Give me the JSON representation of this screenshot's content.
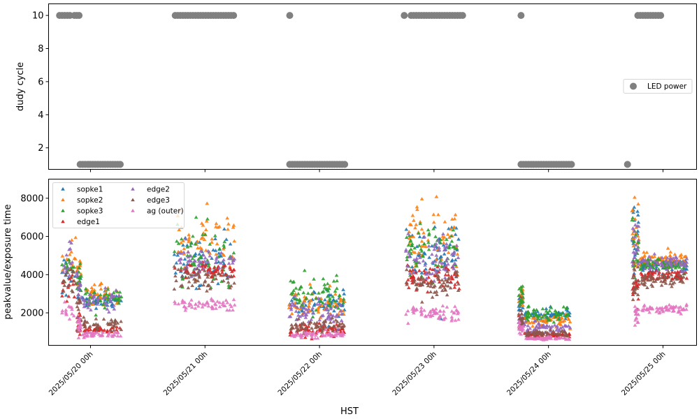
{
  "chart_data": [
    {
      "id": "led-power",
      "type": "scatter",
      "title": "",
      "xlabel": "",
      "ylabel": "dudy cycle",
      "ylim": [
        0.7,
        10.7
      ],
      "yticks": [
        2,
        4,
        6,
        8,
        10
      ],
      "ytick_labels": [
        "2",
        "4",
        "6",
        "8",
        "10"
      ],
      "x_unit": "days since 2025/05/20 00h (HST)",
      "xlim": [
        -0.366,
        5.293
      ],
      "xticks": [
        0,
        1,
        2,
        3,
        4,
        5
      ],
      "xtick_labels_hidden": true,
      "legend": {
        "entries": [
          {
            "label": "LED power",
            "color": "#808080",
            "marker": "circle"
          }
        ],
        "placement": "center-right"
      },
      "series": [
        {
          "name": "LED power",
          "color": "#808080",
          "segments": [
            {
              "value": 10,
              "x_start": -0.27,
              "x_end": -0.18
            },
            {
              "value": 10,
              "x_start": -0.14,
              "x_end": -0.1
            },
            {
              "value": 1,
              "x_start": -0.09,
              "x_end": 0.26
            },
            {
              "value": 10,
              "x_start": 0.74,
              "x_end": 1.25
            },
            {
              "value": 1,
              "x_start": 1.74,
              "x_end": 2.22
            },
            {
              "value": 10,
              "x_start": 1.74,
              "x_end": 1.74
            },
            {
              "value": 10,
              "x_start": 2.74,
              "x_end": 2.74
            },
            {
              "value": 10,
              "x_start": 2.8,
              "x_end": 3.25
            },
            {
              "value": 10,
              "x_start": 3.76,
              "x_end": 3.76
            },
            {
              "value": 1,
              "x_start": 3.76,
              "x_end": 4.2
            },
            {
              "value": 1,
              "x_start": 4.69,
              "x_end": 4.69
            },
            {
              "value": 10,
              "x_start": 4.78,
              "x_end": 4.98
            }
          ]
        }
      ]
    },
    {
      "id": "peak-exposure",
      "type": "scatter",
      "title": "",
      "xlabel": "HST",
      "ylabel": "peakvalue/exposure time",
      "ylim": [
        300,
        9000
      ],
      "yticks": [
        2000,
        4000,
        6000,
        8000
      ],
      "ytick_labels": [
        "2000",
        "4000",
        "6000",
        "8000"
      ],
      "xlim": [
        -0.366,
        5.293
      ],
      "xticks": [
        0,
        1,
        2,
        3,
        4,
        5
      ],
      "xtick_labels": [
        "2025/05/20 00h",
        "2025/05/21 00h",
        "2025/05/22 00h",
        "2025/05/23 00h",
        "2025/05/24 00h",
        "2025/05/25 00h"
      ],
      "legend": {
        "placement": "upper-left",
        "ncol": 2,
        "entries": [
          {
            "label": "sopke1",
            "color": "#1f77b4"
          },
          {
            "label": "sopke2",
            "color": "#ff7f0e"
          },
          {
            "label": "sopke3",
            "color": "#2ca02c"
          },
          {
            "label": "edge1",
            "color": "#d62728"
          },
          {
            "label": "edge2",
            "color": "#9467bd"
          },
          {
            "label": "edge3",
            "color": "#8c564b"
          },
          {
            "label": "ag (outer)",
            "color": "#e377c2"
          }
        ]
      },
      "series_colors": {
        "sopke1": "#1f77b4",
        "sopke2": "#ff7f0e",
        "sopke3": "#2ca02c",
        "edge1": "#d62728",
        "edge2": "#9467bd",
        "edge3": "#8c564b",
        "ag (outer)": "#e377c2"
      },
      "clusters": [
        {
          "x_start": -0.25,
          "x_end": -0.13,
          "n": 14,
          "levels": {
            "sopke1": [
              4200,
              700
            ],
            "sopke2": [
              4800,
              900
            ],
            "sopke3": [
              4300,
              700
            ],
            "edge1": [
              3300,
              700
            ],
            "edge2": [
              4500,
              900
            ],
            "edge3": [
              3800,
              800
            ],
            "ag (outer)": [
              2100,
              400
            ]
          }
        },
        {
          "x_start": -0.12,
          "x_end": -0.08,
          "n": 14,
          "levels": {
            "sopke1": [
              3500,
              700
            ],
            "sopke2": [
              4200,
              900
            ],
            "sopke3": [
              3700,
              700
            ],
            "edge1": [
              1500,
              700
            ],
            "edge2": [
              3200,
              1200
            ],
            "edge3": [
              2200,
              1000
            ],
            "ag (outer)": [
              1300,
              500
            ]
          }
        },
        {
          "x_start": -0.07,
          "x_end": 0.27,
          "n": 40,
          "levels": {
            "sopke1": [
              2600,
              300
            ],
            "sopke2": [
              3000,
              500
            ],
            "sopke3": [
              2800,
              400
            ],
            "edge1": [
              1100,
              150
            ],
            "edge2": [
              2700,
              400
            ],
            "edge3": [
              1400,
              250
            ],
            "ag (outer)": [
              850,
              120
            ]
          }
        },
        {
          "x_start": 0.73,
          "x_end": 1.26,
          "n": 55,
          "levels": {
            "sopke1": [
              4800,
              1100
            ],
            "sopke2": [
              5600,
              1500
            ],
            "sopke3": [
              5000,
              1100
            ],
            "edge1": [
              4200,
              350
            ],
            "edge2": [
              4700,
              600
            ],
            "edge3": [
              3800,
              600
            ],
            "ag (outer)": [
              2400,
              250
            ]
          }
        },
        {
          "x_start": 1.73,
          "x_end": 2.22,
          "n": 60,
          "levels": {
            "sopke1": [
              2500,
              500
            ],
            "sopke2": [
              2500,
              600
            ],
            "sopke3": [
              2900,
              700
            ],
            "edge1": [
              1100,
              250
            ],
            "edge2": [
              2100,
              500
            ],
            "edge3": [
              1300,
              300
            ],
            "ag (outer)": [
              850,
              150
            ]
          }
        },
        {
          "x_start": 2.75,
          "x_end": 3.22,
          "n": 60,
          "levels": {
            "sopke1": [
              5200,
              1400
            ],
            "sopke2": [
              6000,
              1600
            ],
            "sopke3": [
              5200,
              1300
            ],
            "edge1": [
              3900,
              600
            ],
            "edge2": [
              4700,
              1000
            ],
            "edge3": [
              3600,
              600
            ],
            "ag (outer)": [
              2000,
              350
            ]
          }
        },
        {
          "x_start": 3.74,
          "x_end": 3.78,
          "n": 14,
          "levels": {
            "sopke1": [
              2600,
              500
            ],
            "sopke2": [
              2800,
              700
            ],
            "sopke3": [
              2900,
              500
            ],
            "edge1": [
              1500,
              400
            ],
            "edge2": [
              1500,
              400
            ],
            "edge3": [
              1700,
              500
            ],
            "ag (outer)": [
              1200,
              300
            ]
          }
        },
        {
          "x_start": 3.79,
          "x_end": 4.19,
          "n": 50,
          "levels": {
            "sopke1": [
              1900,
              250
            ],
            "sopke2": [
              1600,
              350
            ],
            "sopke3": [
              1900,
              300
            ],
            "edge1": [
              850,
              100
            ],
            "edge2": [
              1200,
              250
            ],
            "edge3": [
              900,
              150
            ],
            "ag (outer)": [
              650,
              60
            ]
          }
        },
        {
          "x_start": 4.73,
          "x_end": 4.79,
          "n": 18,
          "levels": {
            "sopke1": [
              5800,
              1500
            ],
            "sopke2": [
              6300,
              1700
            ],
            "sopke3": [
              5500,
              1300
            ],
            "edge1": [
              3300,
              700
            ],
            "edge2": [
              5500,
              1300
            ],
            "edge3": [
              3500,
              700
            ],
            "ag (outer)": [
              1900,
              400
            ]
          }
        },
        {
          "x_start": 4.8,
          "x_end": 5.21,
          "n": 60,
          "levels": {
            "sopke1": [
              4500,
              300
            ],
            "sopke2": [
              4800,
              300
            ],
            "sopke3": [
              4500,
              300
            ],
            "edge1": [
              3950,
              200
            ],
            "edge2": [
              4600,
              300
            ],
            "edge3": [
              3700,
              400
            ],
            "ag (outer)": [
              2200,
              150
            ]
          }
        }
      ]
    }
  ]
}
